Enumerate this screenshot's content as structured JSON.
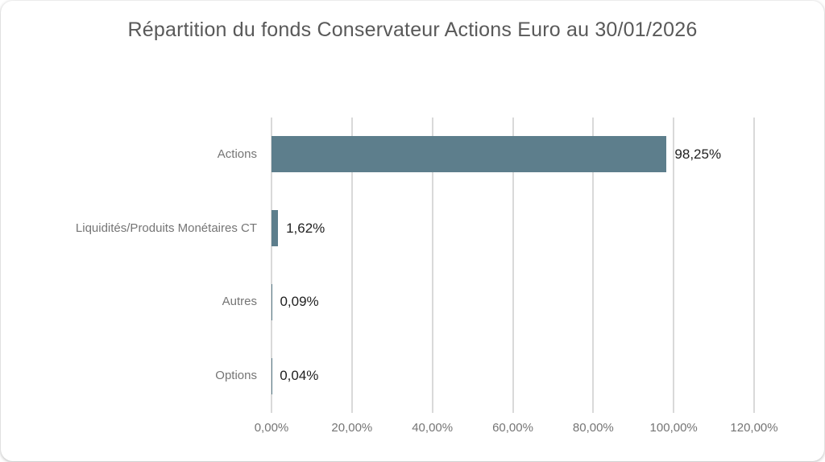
{
  "chart_data": {
    "type": "bar",
    "orientation": "horizontal",
    "title": "Répartition du fonds Conservateur Actions Euro au 30/01/2026",
    "categories": [
      "Actions",
      "Liquidités/Produits Monétaires CT",
      "Autres",
      "Options"
    ],
    "values": [
      98.25,
      1.62,
      0.09,
      0.04
    ],
    "value_labels": [
      "98,25%",
      "1,62%",
      "0,09%",
      "0,04%"
    ],
    "x_ticks": [
      "0,00%",
      "20,00%",
      "40,00%",
      "60,00%",
      "80,00%",
      "100,00%",
      "120,00%"
    ],
    "x_tick_values": [
      0,
      20,
      40,
      60,
      80,
      100,
      120
    ],
    "xlim": [
      0,
      120
    ],
    "grid": "vertical-only",
    "legend": "none",
    "colors": {
      "bar": "#5D7E8C",
      "gridline": "#D9D9D9",
      "title": "#595959",
      "category_label": "#757575",
      "tick_label": "#757575",
      "value_label": "#1F1F1F",
      "background": "#FFFFFF"
    }
  }
}
